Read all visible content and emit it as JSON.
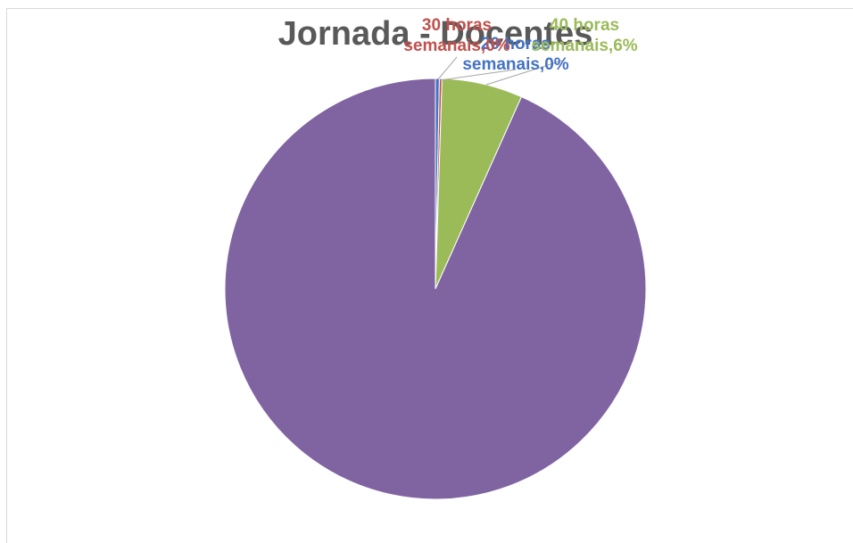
{
  "chart_data": {
    "type": "pie",
    "title": "Jornada - Docentes",
    "slices": [
      {
        "label_line1": "20 horas",
        "label_line2": "semanais",
        "value_text": "0%",
        "value": 0.3,
        "color": "#4472c4"
      },
      {
        "label_line1": "30 horas",
        "label_line2": "semanais",
        "value_text": "0%",
        "value": 0.2,
        "color": "#c0504d"
      },
      {
        "label_line1": "40 horas",
        "label_line2": "semanais",
        "value_text": "6%",
        "value": 6.2,
        "color": "#9bbb59"
      },
      {
        "label_line1": "",
        "label_line2": "",
        "value_text": "",
        "value": 93.3,
        "color": "#8064a2"
      }
    ]
  }
}
